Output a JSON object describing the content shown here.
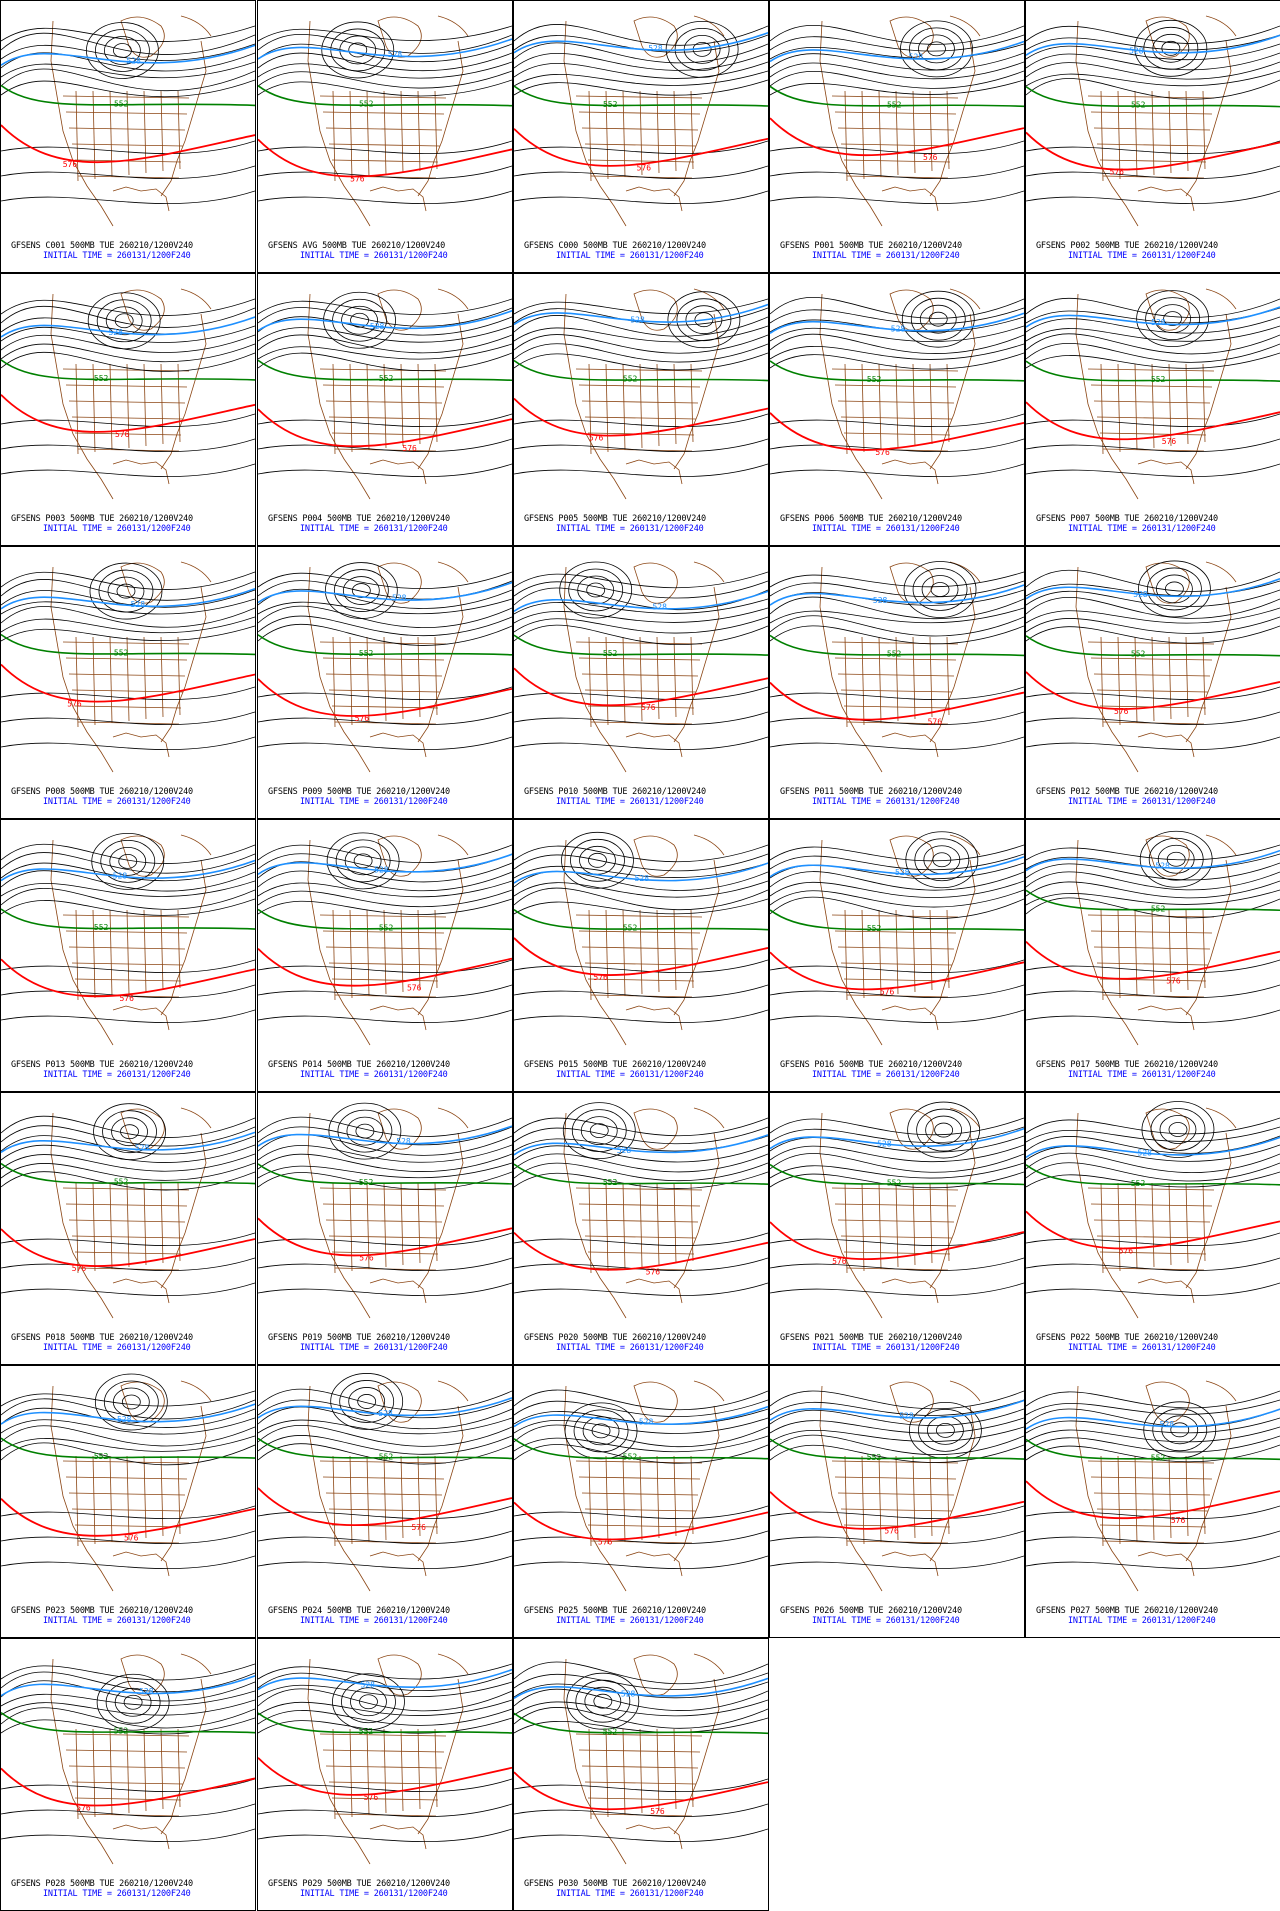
{
  "colors": {
    "background": "#ffffff",
    "border": "#000000",
    "geography": "#8b4513",
    "contour_black": "#000000",
    "contour_552": "#008000",
    "contour_576": "#ff0000",
    "contour_528": "#1e90ff",
    "caption_line1": "#000000",
    "caption_line2": "#0000ff"
  },
  "contour_labels": {
    "blue": "528",
    "green": "552",
    "red": "576"
  },
  "initial_time_text": "INITIAL TIME = 260131/1200F240",
  "panels": [
    {
      "title": "GFSENS C001 500MB TUE 260210/1200V240"
    },
    {
      "title": "GFSENS AVG 500MB TUE 260210/1200V240"
    },
    {
      "title": "GFSENS C000 500MB TUE 260210/1200V240"
    },
    {
      "title": "GFSENS P001 500MB TUE 260210/1200V240"
    },
    {
      "title": "GFSENS P002 500MB TUE 260210/1200V240"
    },
    {
      "title": "GFSENS P003 500MB TUE 260210/1200V240"
    },
    {
      "title": "GFSENS P004 500MB TUE 260210/1200V240"
    },
    {
      "title": "GFSENS P005 500MB TUE 260210/1200V240"
    },
    {
      "title": "GFSENS P006 500MB TUE 260210/1200V240"
    },
    {
      "title": "GFSENS P007 500MB TUE 260210/1200V240"
    },
    {
      "title": "GFSENS P008 500MB TUE 260210/1200V240"
    },
    {
      "title": "GFSENS P009 500MB TUE 260210/1200V240"
    },
    {
      "title": "GFSENS P010 500MB TUE 260210/1200V240"
    },
    {
      "title": "GFSENS P011 500MB TUE 260210/1200V240"
    },
    {
      "title": "GFSENS P012 500MB TUE 260210/1200V240"
    },
    {
      "title": "GFSENS P013 500MB TUE 260210/1200V240"
    },
    {
      "title": "GFSENS P014 500MB TUE 260210/1200V240"
    },
    {
      "title": "GFSENS P015 500MB TUE 260210/1200V240"
    },
    {
      "title": "GFSENS P016 500MB TUE 260210/1200V240"
    },
    {
      "title": "GFSENS P017 500MB TUE 260210/1200V240"
    },
    {
      "title": "GFSENS P018 500MB TUE 260210/1200V240"
    },
    {
      "title": "GFSENS P019 500MB TUE 260210/1200V240"
    },
    {
      "title": "GFSENS P020 500MB TUE 260210/1200V240"
    },
    {
      "title": "GFSENS P021 500MB TUE 260210/1200V240"
    },
    {
      "title": "GFSENS P022 500MB TUE 260210/1200V240"
    },
    {
      "title": "GFSENS P023 500MB TUE 260210/1200V240"
    },
    {
      "title": "GFSENS P024 500MB TUE 260210/1200V240"
    },
    {
      "title": "GFSENS P025 500MB TUE 260210/1200V240"
    },
    {
      "title": "GFSENS P026 500MB TUE 260210/1200V240"
    },
    {
      "title": "GFSENS P027 500MB TUE 260210/1200V240"
    },
    {
      "title": "GFSENS P028 500MB TUE 260210/1200V240"
    },
    {
      "title": "GFSENS P029 500MB TUE 260210/1200V240"
    },
    {
      "title": "GFSENS P030 500MB TUE 260210/1200V240"
    }
  ]
}
